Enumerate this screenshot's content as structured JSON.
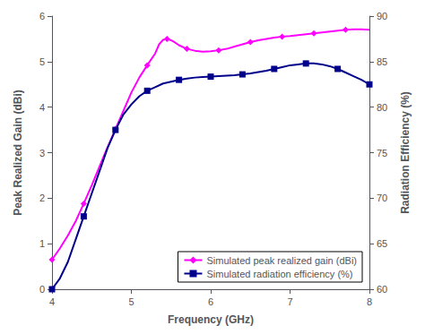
{
  "chart_data": {
    "type": "line",
    "xlabel": "Frequency (GHz)",
    "ylabel": "Peak Realized Gain (dBi)",
    "y2label": "Radiation Efficiency (%)",
    "xlim": [
      4.0,
      8.0
    ],
    "xticks": [
      4,
      5,
      6,
      7,
      8
    ],
    "ylim": [
      0,
      6
    ],
    "yticks": [
      0,
      1,
      2,
      3,
      4,
      5,
      6
    ],
    "y2lim": [
      60,
      90
    ],
    "y2ticks": [
      60,
      65,
      70,
      75,
      80,
      85,
      90
    ],
    "grid": false,
    "legend": "lower right",
    "series": [
      {
        "name": "Simulated peak realized gain (dBi)",
        "color": "#FF00FF",
        "marker": "diamond",
        "axis": "y",
        "x": [
          4.0,
          4.1,
          4.2,
          4.3,
          4.4,
          4.5,
          4.6,
          4.7,
          4.8,
          4.9,
          5.0,
          5.1,
          5.2,
          5.3,
          5.35,
          5.4,
          5.45,
          5.5,
          5.55,
          5.6,
          5.7,
          5.8,
          5.9,
          6.0,
          6.1,
          6.2,
          6.3,
          6.4,
          6.5,
          6.6,
          6.7,
          6.8,
          6.9,
          7.0,
          7.1,
          7.2,
          7.3,
          7.4,
          7.5,
          7.6,
          7.7,
          7.8,
          7.9,
          8.0
        ],
        "values": [
          0.65,
          0.9,
          1.18,
          1.5,
          1.88,
          2.28,
          2.7,
          3.12,
          3.52,
          3.92,
          4.32,
          4.65,
          4.92,
          5.18,
          5.38,
          5.48,
          5.5,
          5.47,
          5.42,
          5.36,
          5.28,
          5.24,
          5.22,
          5.23,
          5.25,
          5.28,
          5.33,
          5.38,
          5.43,
          5.47,
          5.5,
          5.53,
          5.55,
          5.56,
          5.58,
          5.6,
          5.62,
          5.64,
          5.66,
          5.68,
          5.7,
          5.71,
          5.71,
          5.7
        ]
      },
      {
        "name": "Simulated radiation efficiency (%)",
        "color": "#00008B",
        "marker": "square",
        "axis": "y2",
        "x": [
          4.0,
          4.1,
          4.2,
          4.3,
          4.4,
          4.5,
          4.6,
          4.7,
          4.8,
          4.9,
          5.0,
          5.1,
          5.2,
          5.3,
          5.4,
          5.5,
          5.6,
          5.7,
          5.8,
          5.9,
          6.0,
          6.1,
          6.2,
          6.3,
          6.4,
          6.5,
          6.6,
          6.7,
          6.8,
          6.9,
          7.0,
          7.1,
          7.2,
          7.3,
          7.4,
          7.5,
          7.6,
          7.7,
          7.8,
          7.9,
          8.0
        ],
        "values": [
          60.0,
          61.2,
          63.0,
          65.5,
          68.0,
          70.5,
          73.0,
          75.5,
          77.5,
          79.2,
          80.3,
          81.2,
          81.8,
          82.2,
          82.6,
          82.8,
          83.0,
          83.15,
          83.25,
          83.3,
          83.35,
          83.4,
          83.45,
          83.5,
          83.6,
          83.7,
          83.85,
          84.0,
          84.2,
          84.4,
          84.6,
          84.7,
          84.8,
          84.8,
          84.7,
          84.5,
          84.2,
          83.8,
          83.4,
          83.0,
          82.5
        ]
      }
    ]
  }
}
